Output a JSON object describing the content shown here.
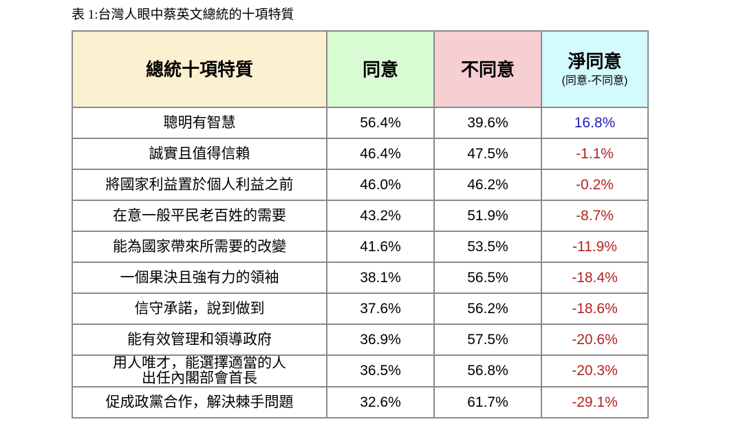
{
  "caption": "表 1:台灣人眼中蔡英文總統的十項特質",
  "headers": {
    "trait": "總統十項特質",
    "agree": "同意",
    "disagree": "不同意",
    "net": "淨同意",
    "net_sub": "(同意-不同意)"
  },
  "rows": [
    {
      "trait": "聰明有智慧",
      "agree": "56.4%",
      "disagree": "39.6%",
      "net": "16.8%"
    },
    {
      "trait": "誠實且值得信賴",
      "agree": "46.4%",
      "disagree": "47.5%",
      "net": "-1.1%"
    },
    {
      "trait": "將國家利益置於個人利益之前",
      "agree": "46.0%",
      "disagree": "46.2%",
      "net": "-0.2%"
    },
    {
      "trait": "在意一般平民老百姓的需要",
      "agree": "43.2%",
      "disagree": "51.9%",
      "net": "-8.7%"
    },
    {
      "trait": "能為國家帶來所需要的改變",
      "agree": "41.6%",
      "disagree": "53.5%",
      "net": "-11.9%"
    },
    {
      "trait": "一個果決且強有力的領袖",
      "agree": "38.1%",
      "disagree": "56.5%",
      "net": "-18.4%"
    },
    {
      "trait": "信守承諾，說到做到",
      "agree": "37.6%",
      "disagree": "56.2%",
      "net": "-18.6%"
    },
    {
      "trait": "能有效管理和領導政府",
      "agree": "36.9%",
      "disagree": "57.5%",
      "net": "-20.6%"
    },
    {
      "trait": "用人唯才，能選擇適當的人",
      "trait_line2": "出任內閣部會首長",
      "agree": "36.5%",
      "disagree": "56.8%",
      "net": "-20.3%"
    },
    {
      "trait": "促成政黨合作，解決棘手問題",
      "agree": "32.6%",
      "disagree": "61.7%",
      "net": "-29.1%"
    }
  ],
  "colors": {
    "header_trait_bg": "#fbf0cf",
    "header_agree_bg": "#d9fbd4",
    "header_disagree_bg": "#f6cfd3",
    "header_net_bg": "#d3fafc",
    "positive_net": "#1f20c4",
    "negative_net": "#b32222"
  }
}
